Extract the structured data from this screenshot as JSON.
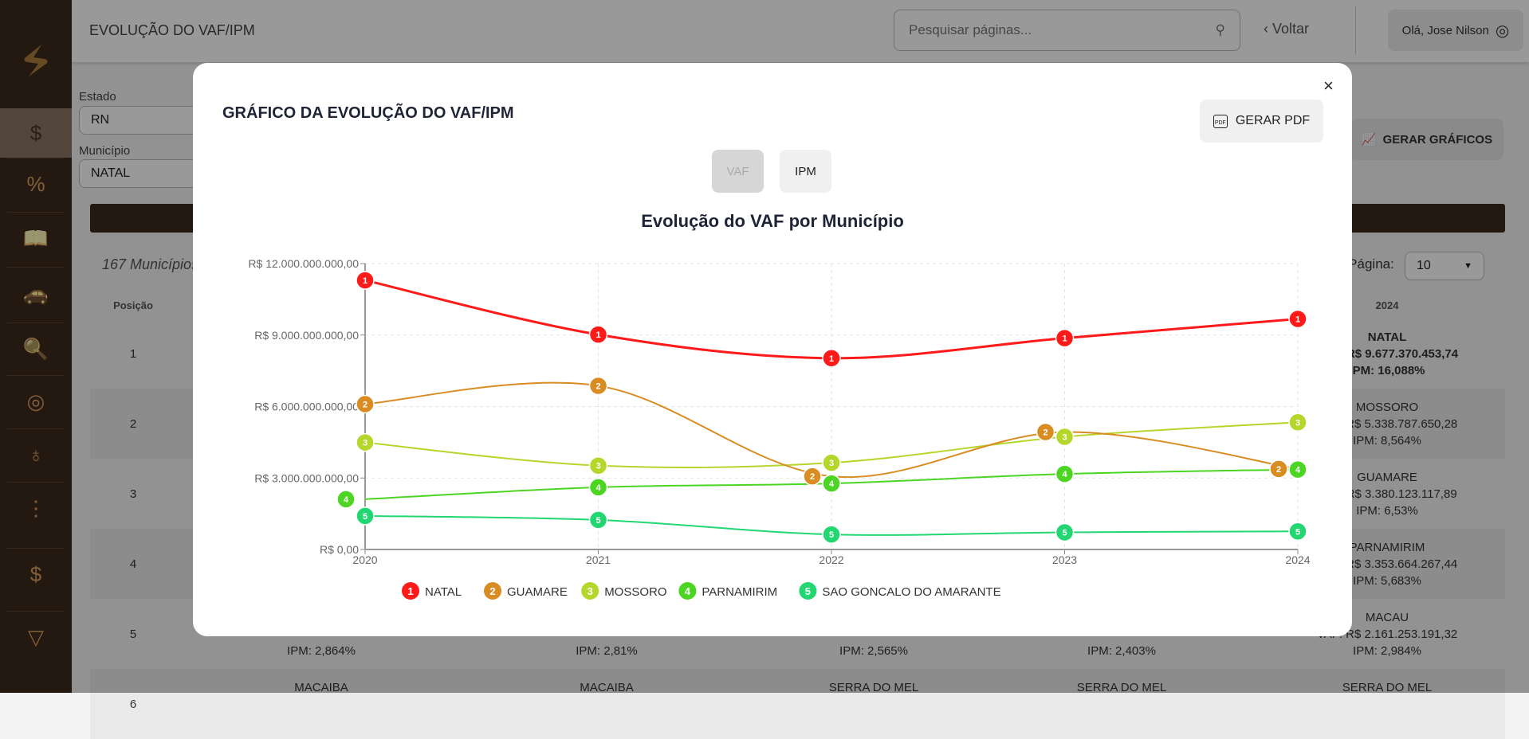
{
  "header": {
    "title": "EVOLUÇÃO DO VAF/IPM",
    "search_placeholder": "Pesquisar páginas...",
    "back_label": "Voltar",
    "user_greeting": "Olá, Jose Nilson"
  },
  "sidebar": {
    "items": [
      "payments-icon",
      "percent-icon",
      "book-icon",
      "car-icon",
      "document-search-icon",
      "coins-icon",
      "stethoscope-icon",
      "road-icon",
      "invoice-icon",
      "money-funnel-icon"
    ],
    "active_index": 0
  },
  "filters": {
    "state_label": "Estado",
    "state_value": "RN",
    "municipality_label": "Município",
    "municipality_value": "NATAL",
    "generate_charts_label": "GERAR GRÁFICOS"
  },
  "table": {
    "count_text": "167 Municípios",
    "per_page_label": "Por Página:",
    "per_page_value": "10",
    "headers": {
      "position": "Posição",
      "y2024": "2024"
    },
    "positions": [
      "1",
      "2",
      "3",
      "4",
      "5",
      "6"
    ],
    "col2024": [
      {
        "name": "NATAL",
        "vaf": "VAF: R$ 9.677.370.453,74",
        "ipm": "IPM: 16,088%"
      },
      {
        "name": "MOSSORO",
        "vaf": "VAF: R$ 5.338.787.650,28",
        "ipm": "IPM: 8,564%"
      },
      {
        "name": "GUAMARE",
        "vaf": "VAF: R$ 3.380.123.117,89",
        "ipm": "IPM: 6,53%"
      },
      {
        "name": "PARNAMIRIM",
        "vaf": "VAF: R$ 3.353.664.267,44",
        "ipm": "IPM: 5,683%"
      },
      {
        "name": "MACAU",
        "vaf": "VAF: R$ 2.161.253.191,32",
        "ipm": "IPM: 2,984%"
      },
      {
        "name": "SERRA DO MEL"
      }
    ],
    "row5_ipm": [
      "IPM: 2,864%",
      "IPM: 2,81%",
      "IPM: 2,565%",
      "IPM: 2,403%"
    ],
    "row6_names": [
      "MACAIBA",
      "MACAIBA",
      "SERRA DO MEL",
      "SERRA DO MEL"
    ]
  },
  "modal": {
    "title": "GRÁFICO DA EVOLUÇÃO DO VAF/IPM",
    "close_label": "×",
    "pdf_label": "GERAR PDF",
    "toggle_vaf": "VAF",
    "toggle_ipm": "IPM",
    "active_toggle": "VAF"
  },
  "chart_data": {
    "type": "line",
    "title": "Evolução do VAF por Município",
    "x": [
      "2020",
      "2021",
      "2022",
      "2023",
      "2024"
    ],
    "ylim": [
      0,
      12000000000
    ],
    "yticks": [
      "R$ 0,00",
      "R$ 3.000.000.000,00",
      "R$ 6.000.000.000,00",
      "R$ 9.000.000.000,00",
      "R$ 12.000.000.000,00"
    ],
    "ytick_values": [
      0,
      3000000000,
      6000000000,
      9000000000,
      12000000000
    ],
    "grid": true,
    "legend": "bottom",
    "series": [
      {
        "name": "NATAL",
        "rank": "1",
        "color": "#ff1a1a",
        "values": [
          11300000000,
          9020000000,
          8030000000,
          8870000000,
          9677370453.74
        ]
      },
      {
        "name": "GUAMARE",
        "rank": "2",
        "color": "#d98c22",
        "values": [
          6100000000,
          6870000000,
          3070000000,
          4930000000,
          3380123117.89
        ]
      },
      {
        "name": "MOSSORO",
        "rank": "3",
        "color": "#b5d62a",
        "values": [
          4490000000,
          3520000000,
          3640000000,
          4730000000,
          5338787650.28
        ]
      },
      {
        "name": "PARNAMIRIM",
        "rank": "4",
        "color": "#4cd623",
        "values": [
          2110000000,
          2610000000,
          2770000000,
          3170000000,
          3353664267.44
        ]
      },
      {
        "name": "SAO GONCALO DO AMARANTE",
        "rank": "5",
        "color": "#22d672",
        "values": [
          1410000000,
          1240000000,
          630000000,
          720000000,
          760000000
        ]
      }
    ]
  }
}
